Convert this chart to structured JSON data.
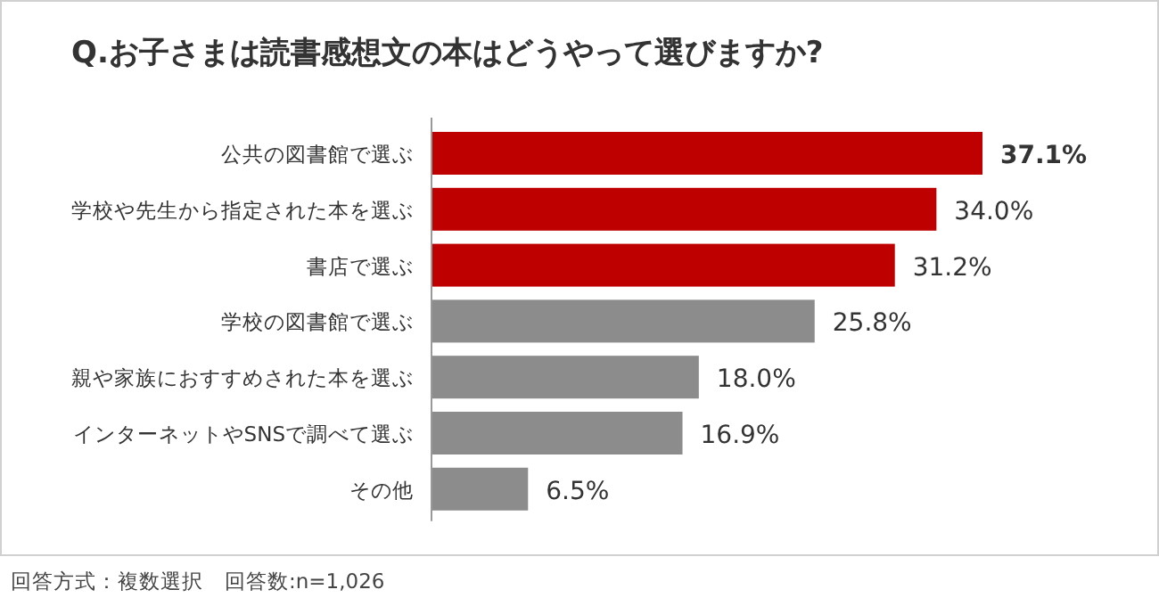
{
  "chart_data": {
    "type": "bar",
    "orientation": "horizontal",
    "title": "Q.お子さまは読書感想文の本はどうやって選びますか?",
    "categories": [
      "公共の図書館で選ぶ",
      "学校や先生から指定された本を選ぶ",
      "書店で選ぶ",
      "学校の図書館で選ぶ",
      "親や家族におすすめされた本を選ぶ",
      "インターネットやSNSで調べて選ぶ",
      "その他"
    ],
    "values": [
      37.1,
      34.0,
      31.2,
      25.8,
      18.0,
      16.9,
      6.5
    ],
    "value_labels": [
      "**37.1%**",
      "34.0%",
      "31.2%",
      "25.8%",
      "18.0%",
      "16.9%",
      "6.5%"
    ],
    "colors": [
      "#bf0000",
      "#bf0000",
      "#bf0000",
      "#8c8c8c",
      "#8c8c8c",
      "#8c8c8c",
      "#8c8c8c"
    ],
    "annotations": [
      "回答方式：複数選択　回答数:n=1,026"
    ]
  }
}
